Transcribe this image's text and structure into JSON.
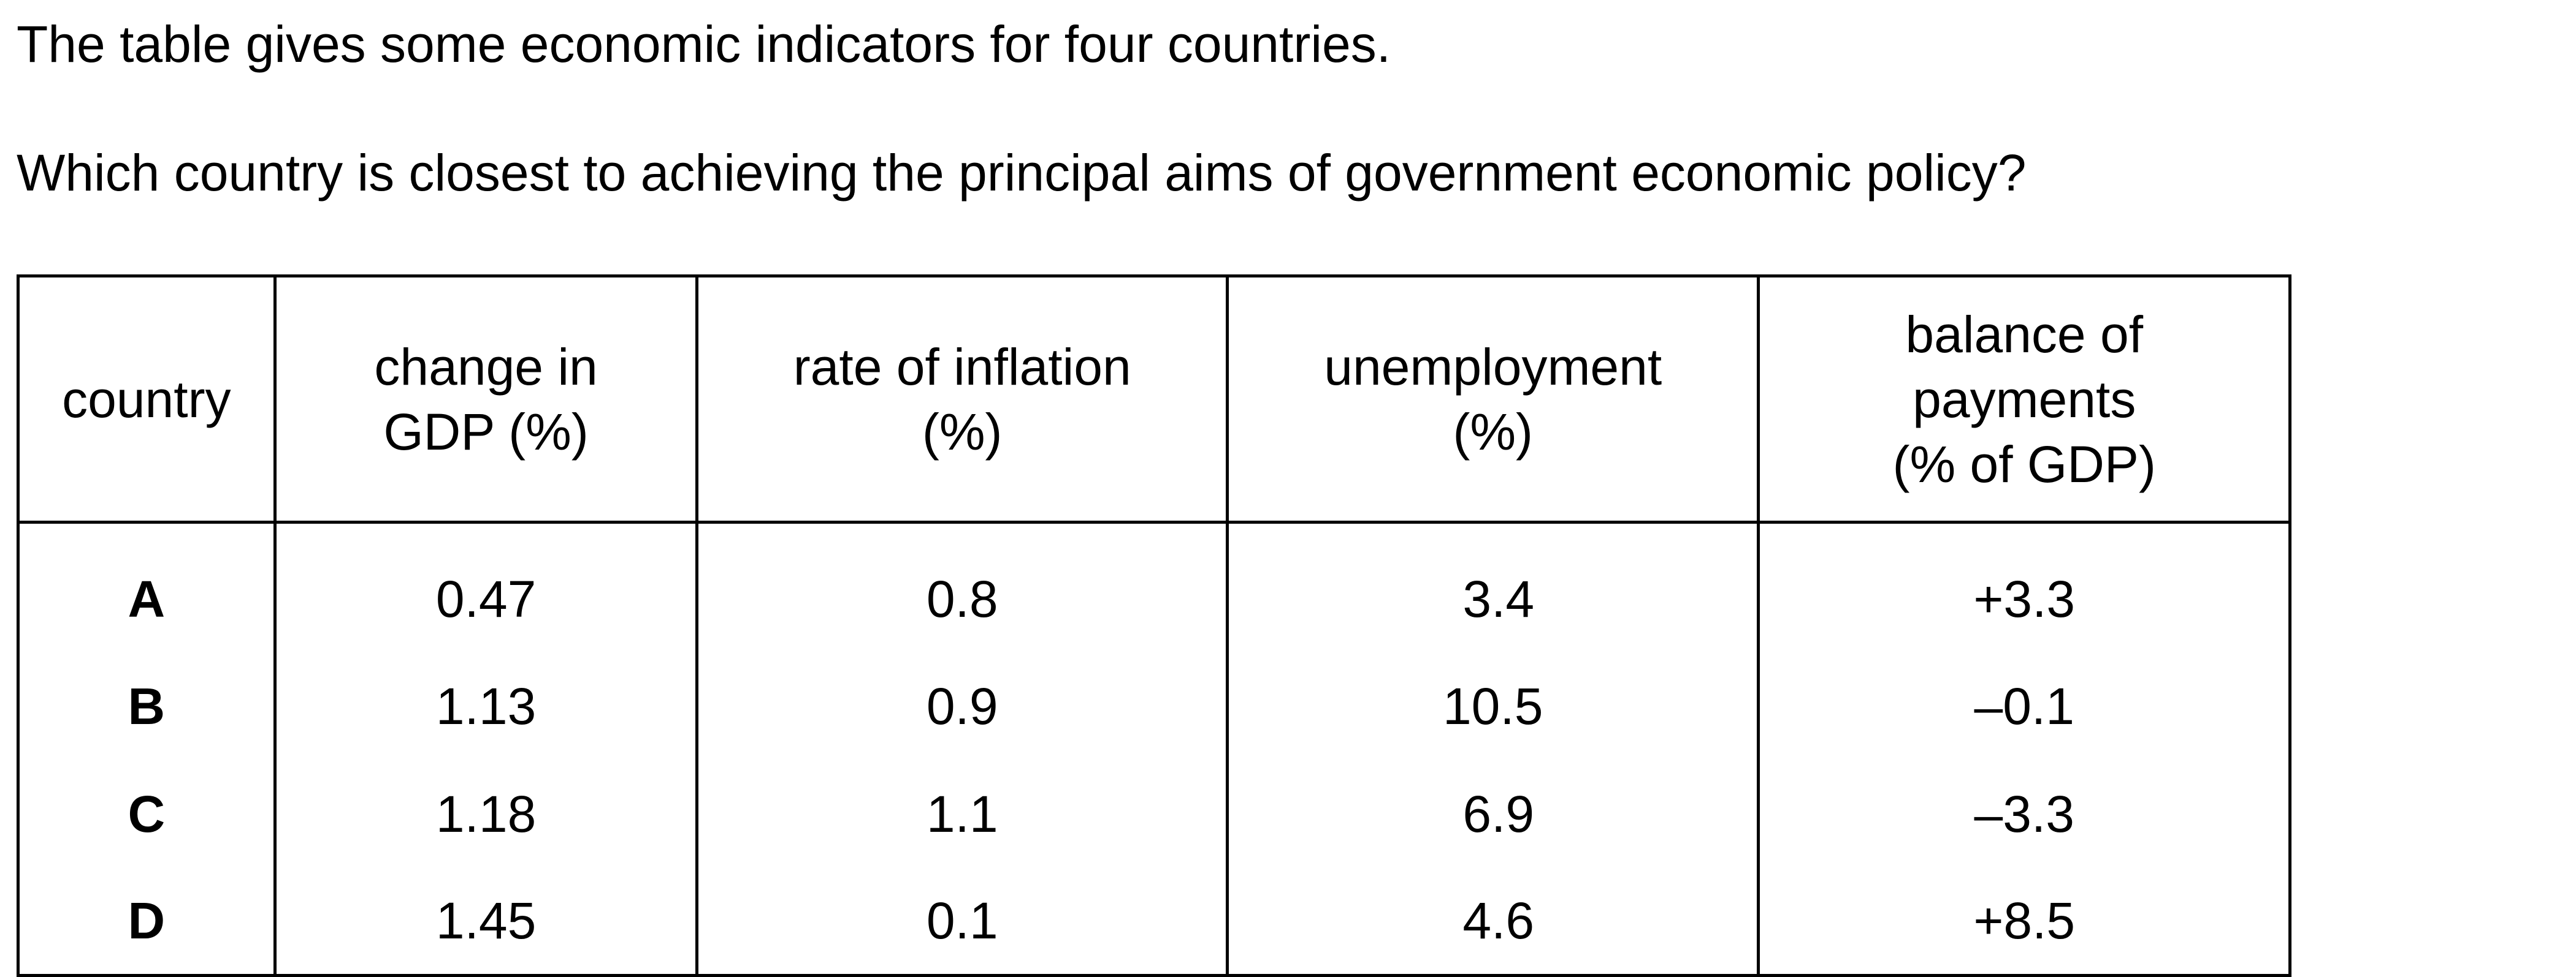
{
  "intro": "The table gives some economic indicators for four countries.",
  "question": "Which country is closest to achieving the principal aims of government economic policy?",
  "table": {
    "headers": [
      [
        "country"
      ],
      [
        "change in",
        "GDP (%)"
      ],
      [
        "rate of inflation",
        "(%)"
      ],
      [
        "unemployment",
        "(%)"
      ],
      [
        "balance of",
        "payments",
        "(% of GDP)"
      ]
    ],
    "rows": [
      [
        "A",
        "0.47",
        "0.8",
        "3.4",
        "+3.3"
      ],
      [
        "B",
        "1.13",
        "0.9",
        "10.5",
        "–0.1"
      ],
      [
        "C",
        "1.18",
        "1.1",
        "6.9",
        "–3.3"
      ],
      [
        "D",
        "1.45",
        "0.1",
        "4.6",
        "+8.5"
      ]
    ]
  }
}
